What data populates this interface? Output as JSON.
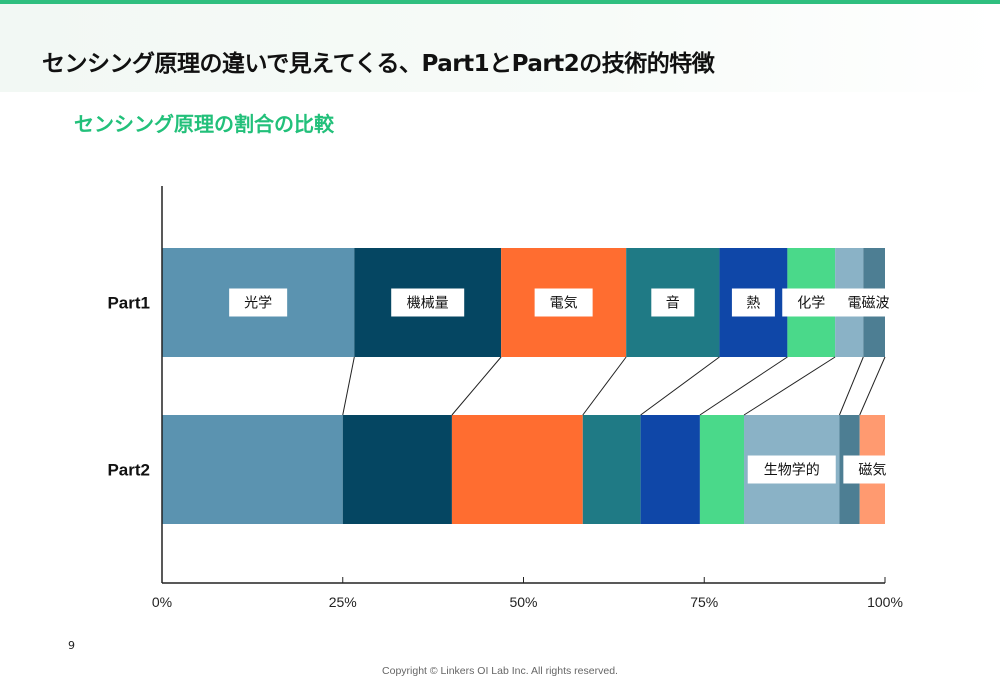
{
  "header": {
    "title": "センシング原理の違いで見えてくる、Part1とPart2の技術的特徴",
    "subtitle": "センシング原理の割合の比較"
  },
  "chart_data": {
    "type": "bar",
    "orientation": "horizontal",
    "stacked": true,
    "percent": true,
    "categories": [
      "Part1",
      "Part2"
    ],
    "series": [
      {
        "name": "光学",
        "color": "#5b93b0",
        "values": [
          26.6,
          25.0
        ]
      },
      {
        "name": "機械量",
        "color": "#054662",
        "values": [
          20.3,
          15.1
        ]
      },
      {
        "name": "電気",
        "color": "#ff6d30",
        "values": [
          17.3,
          18.1
        ]
      },
      {
        "name": "音",
        "color": "#1f7a85",
        "values": [
          12.9,
          8.0
        ]
      },
      {
        "name": "熱",
        "color": "#0f47a8",
        "values": [
          9.4,
          8.2
        ]
      },
      {
        "name": "化学",
        "color": "#4ad98a",
        "values": [
          6.6,
          6.1
        ]
      },
      {
        "name": "生物学的",
        "color": "#8ab2c6",
        "values": [
          3.9,
          13.2
        ]
      },
      {
        "name": "電磁波",
        "color": "#4d7e93",
        "values": [
          3.0,
          2.8
        ]
      },
      {
        "name": "磁気",
        "color": "#ff9a70",
        "values": [
          0,
          3.5
        ]
      }
    ],
    "segment_labels_shown": {
      "Part1": [
        "光学",
        "機械量",
        "電気",
        "音",
        "熱",
        "化学",
        "電磁波"
      ],
      "Part2": [
        "生物学的",
        "磁気"
      ]
    },
    "xlim": [
      0,
      100
    ],
    "xticks": [
      "0%",
      "25%",
      "50%",
      "75%",
      "100%"
    ],
    "grid": false,
    "connector_lines": true
  },
  "footer": {
    "page_number": "9",
    "copyright": "Copyright © Linkers OI Lab Inc. All rights reserved."
  }
}
